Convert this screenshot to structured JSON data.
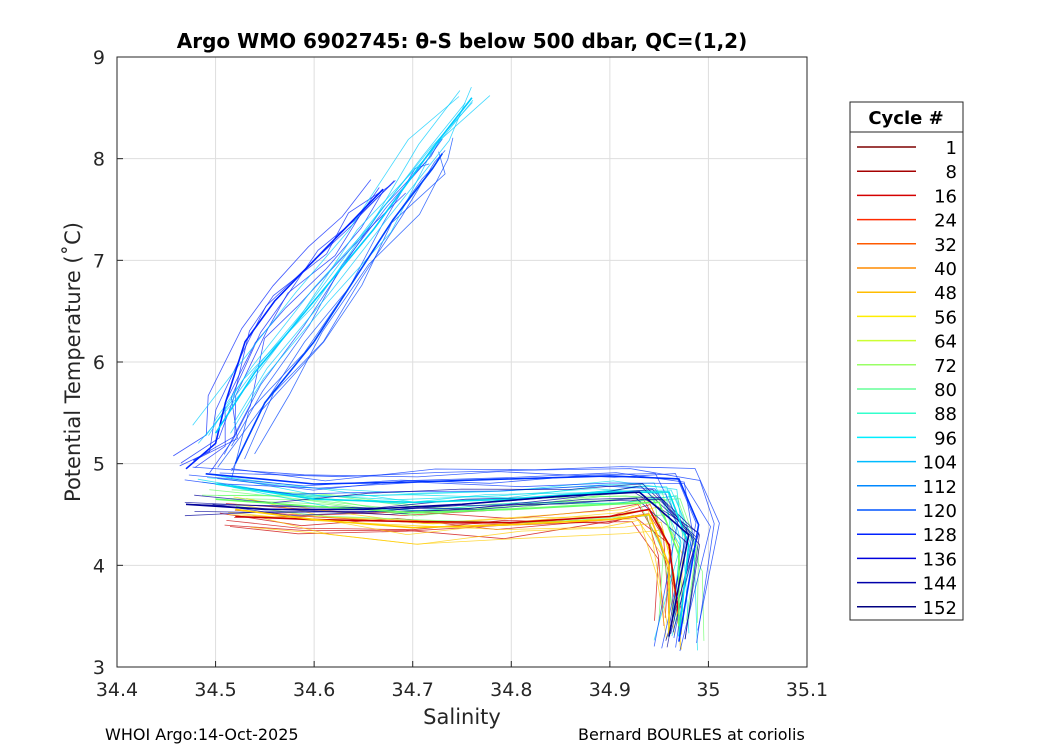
{
  "chart_data": {
    "type": "line",
    "title": "Argo WMO 6902745: θ-S below 500 dbar,  QC=(1,2)",
    "xlabel": "Salinity",
    "ylabel": "Potential Temperature (˚C)",
    "xlim": [
      34.4,
      35.1
    ],
    "ylim": [
      3,
      9
    ],
    "xticks": [
      "34.4",
      "34.5",
      "34.6",
      "34.7",
      "34.8",
      "34.9",
      "35",
      "35.1"
    ],
    "yticks": [
      "3",
      "4",
      "5",
      "6",
      "7",
      "8",
      "9"
    ],
    "grid": true,
    "legend": {
      "title": "Cycle #",
      "placement": "right",
      "entries": [
        {
          "label": "1",
          "color": "#7f0000"
        },
        {
          "label": "8",
          "color": "#a50000"
        },
        {
          "label": "16",
          "color": "#d40000"
        },
        {
          "label": "24",
          "color": "#ff2a00"
        },
        {
          "label": "32",
          "color": "#ff5a00"
        },
        {
          "label": "40",
          "color": "#ff8c00"
        },
        {
          "label": "48",
          "color": "#ffbc00"
        },
        {
          "label": "56",
          "color": "#ffee00"
        },
        {
          "label": "64",
          "color": "#ccff33"
        },
        {
          "label": "72",
          "color": "#99ff66"
        },
        {
          "label": "80",
          "color": "#66ff99"
        },
        {
          "label": "88",
          "color": "#33ffcc"
        },
        {
          "label": "96",
          "color": "#00eeff"
        },
        {
          "label": "104",
          "color": "#00bbff"
        },
        {
          "label": "112",
          "color": "#0088ff"
        },
        {
          "label": "120",
          "color": "#0055ff"
        },
        {
          "label": "128",
          "color": "#0022ff"
        },
        {
          "label": "136",
          "color": "#0000dd"
        },
        {
          "label": "144",
          "color": "#0000aa"
        },
        {
          "label": "152",
          "color": "#000080"
        }
      ]
    },
    "series": [
      {
        "name": "upper branch",
        "color": "#0022ff",
        "x": [
          34.47,
          34.5,
          34.51,
          34.53,
          34.56,
          34.6,
          34.64,
          34.67
        ],
        "y": [
          4.95,
          5.2,
          5.6,
          6.2,
          6.6,
          7.0,
          7.4,
          7.7
        ]
      },
      {
        "name": "warm intrusion",
        "color": "#0044ff",
        "x": [
          34.52,
          34.55,
          34.6,
          34.64,
          34.68,
          34.72,
          34.73
        ],
        "y": [
          5.0,
          5.6,
          6.2,
          6.8,
          7.4,
          7.9,
          8.05
        ]
      },
      {
        "name": "cyan upper",
        "color": "#00ccff",
        "x": [
          34.5,
          34.54,
          34.6,
          34.66,
          34.72,
          34.76
        ],
        "y": [
          5.3,
          5.9,
          6.6,
          7.3,
          8.1,
          8.6
        ]
      },
      {
        "name": "deep red",
        "color": "#cc0000",
        "x": [
          34.52,
          34.6,
          34.7,
          34.8,
          34.9,
          34.94,
          34.96,
          34.97
        ],
        "y": [
          4.48,
          4.45,
          4.43,
          4.42,
          4.48,
          4.55,
          4.2,
          3.5
        ]
      },
      {
        "name": "deep yellow",
        "color": "#ffcc00",
        "x": [
          34.52,
          34.6,
          34.7,
          34.8,
          34.9,
          34.94,
          34.96,
          34.96
        ],
        "y": [
          4.55,
          4.45,
          4.37,
          4.4,
          4.45,
          4.5,
          4.0,
          3.3
        ]
      },
      {
        "name": "deep green",
        "color": "#66ff66",
        "x": [
          34.5,
          34.6,
          34.7,
          34.8,
          34.9,
          34.95,
          34.97,
          34.97
        ],
        "y": [
          4.65,
          4.58,
          4.52,
          4.55,
          4.6,
          4.62,
          4.1,
          3.4
        ]
      },
      {
        "name": "deep cyan",
        "color": "#00ddee",
        "x": [
          34.5,
          34.6,
          34.7,
          34.8,
          34.9,
          34.96,
          34.98,
          34.97
        ],
        "y": [
          4.8,
          4.65,
          4.62,
          4.65,
          4.72,
          4.72,
          4.2,
          3.3
        ]
      },
      {
        "name": "deep blue",
        "color": "#0033ff",
        "x": [
          34.49,
          34.6,
          34.7,
          34.8,
          34.9,
          34.97,
          34.99,
          34.97
        ],
        "y": [
          4.9,
          4.8,
          4.82,
          4.85,
          4.88,
          4.85,
          4.4,
          3.25
        ]
      },
      {
        "name": "deep navy",
        "color": "#000099",
        "x": [
          34.47,
          34.55,
          34.65,
          34.75,
          34.85,
          34.93,
          34.98,
          34.96
        ],
        "y": [
          4.6,
          4.55,
          4.55,
          4.6,
          4.68,
          4.72,
          4.3,
          3.3
        ]
      }
    ]
  },
  "footer": {
    "left": "WHOI Argo:14-Oct-2025",
    "right": "Bernard BOURLES at coriolis"
  }
}
